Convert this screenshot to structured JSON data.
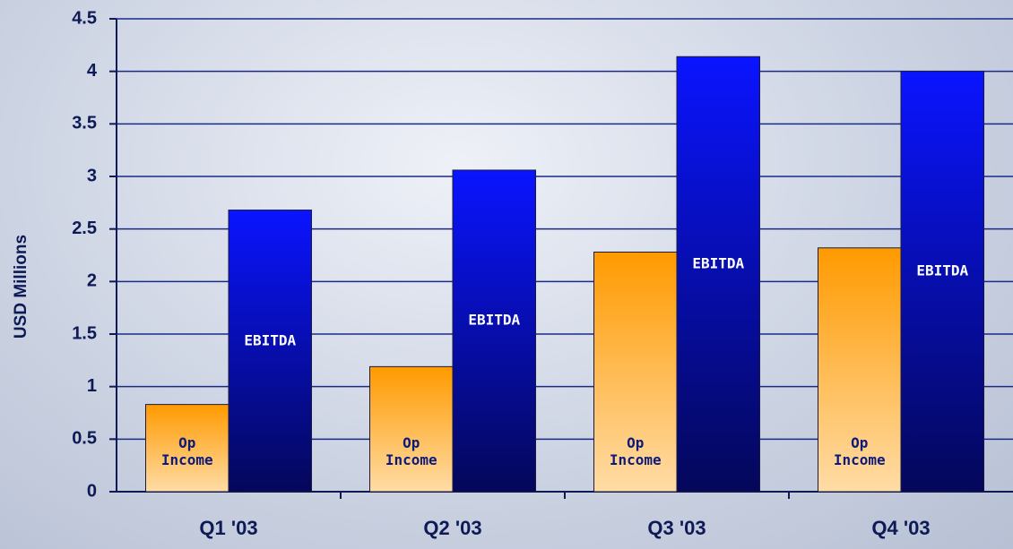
{
  "chart_data": {
    "type": "bar",
    "categories": [
      "Q1 '03",
      "Q2 '03",
      "Q3 '03",
      "Q4 '03"
    ],
    "y_label": "USD Millions",
    "series": [
      {
        "name": "Op Income",
        "color": "#ff9a00",
        "values": [
          0.83,
          1.19,
          2.28,
          2.32
        ]
      },
      {
        "name": "EBITDA",
        "color": "#0a14ff",
        "values": [
          2.68,
          3.06,
          4.14,
          4.0
        ]
      }
    ],
    "ylim": [
      0,
      4.5
    ],
    "yticks": [
      0,
      0.5,
      1,
      1.5,
      2,
      2.5,
      3,
      3.5,
      4,
      4.5
    ],
    "grid": true
  }
}
